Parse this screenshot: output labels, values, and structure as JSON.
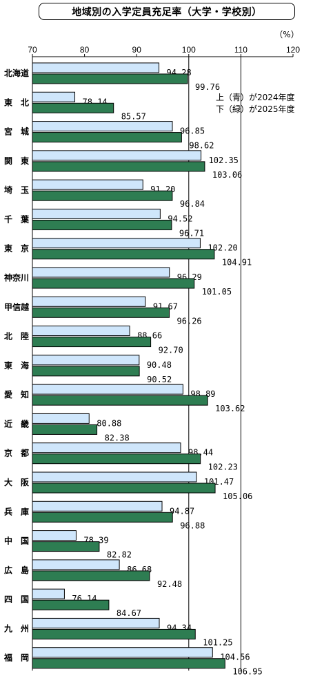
{
  "chart_data": {
    "type": "bar",
    "orientation": "horizontal",
    "title": "地域別の入学定員充足率（大学・学校別）",
    "unit": "（%）",
    "xlim": [
      70,
      120
    ],
    "xticks": [
      "70",
      "80",
      "90",
      "100",
      "110",
      "120"
    ],
    "grid": "vertical at 100 and 110",
    "legend": [
      "上（青）が2024年度",
      "下（緑）が2025年度"
    ],
    "legend_placement": "top-right",
    "categories": [
      "北海道",
      "東　北",
      "宮　城",
      "関　東",
      "埼　玉",
      "千　葉",
      "東　京",
      "神奈川",
      "甲信越",
      "北　陸",
      "東　海",
      "愛　知",
      "近　畿",
      "京　都",
      "大　阪",
      "兵　庫",
      "中　国",
      "広　島",
      "四　国",
      "九　州",
      "福　岡"
    ],
    "series": [
      {
        "name": "2024年度",
        "color": "#cfe6fb",
        "values": [
          94.28,
          78.14,
          96.85,
          102.35,
          91.2,
          94.52,
          102.2,
          96.29,
          91.67,
          88.66,
          90.48,
          98.89,
          80.88,
          98.44,
          101.47,
          94.87,
          78.39,
          86.68,
          76.14,
          94.34,
          104.56
        ],
        "labels": [
          "94.28",
          "78.14",
          "96.85",
          "102.35",
          "91.20",
          "94.52",
          "102.20",
          "96.29",
          "91.67",
          "88.66",
          "90.48",
          "98.89",
          "80.88",
          "98.44",
          "101.47",
          "94.87",
          "78.39",
          "86.68",
          "76.14",
          "94.34",
          "104.56"
        ]
      },
      {
        "name": "2025年度",
        "color": "#2e7d52",
        "values": [
          99.76,
          85.57,
          98.62,
          103.06,
          96.84,
          96.71,
          104.91,
          101.05,
          96.26,
          92.7,
          90.52,
          103.62,
          82.38,
          102.23,
          105.06,
          96.88,
          82.82,
          92.48,
          84.67,
          101.25,
          106.95
        ],
        "labels": [
          "99.76",
          "85.57",
          "98.62",
          "103.06",
          "96.84",
          "96.71",
          "104.91",
          "101.05",
          "96.26",
          "92.70",
          "90.52",
          "103.62",
          "82.38",
          "102.23",
          "105.06",
          "96.88",
          "82.82",
          "92.48",
          "84.67",
          "101.25",
          "106.95"
        ]
      }
    ]
  }
}
